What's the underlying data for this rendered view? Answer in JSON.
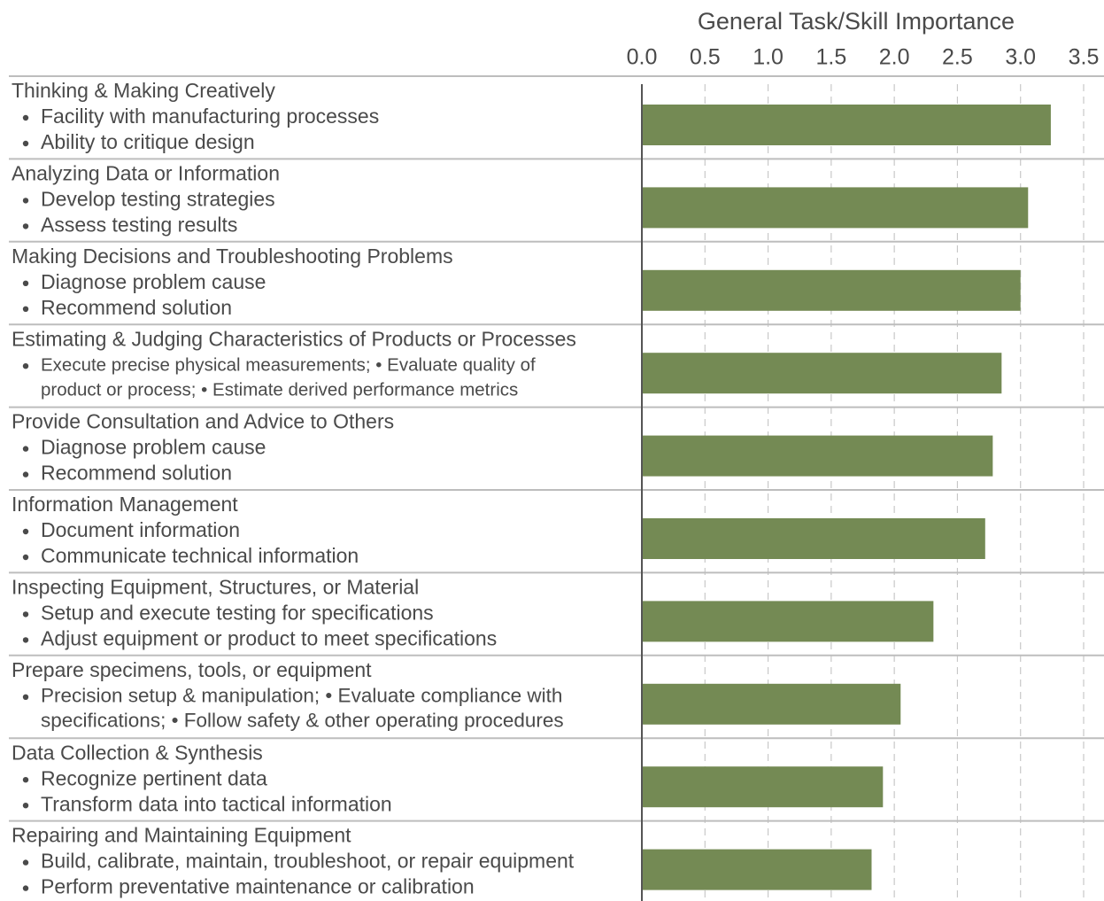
{
  "chart_data": {
    "type": "bar",
    "orientation": "horizontal",
    "xlabel": "General Task/Skill Importance",
    "categories": [
      "Thinking & Making Creatively",
      "Analyzing Data or Information",
      "Making Decisions and Troubleshooting Problems",
      "Estimating & Judging Characteristics of Products or Processes",
      "Provide Consultation and Advice to Others",
      "Information Management",
      "Inspecting Equipment, Structures, or Material",
      "Prepare specimens, tools, or equipment",
      "Data Collection & Synthesis",
      "Repairing and Maintaining Equipment"
    ],
    "details": [
      [
        "Facility with manufacturing processes",
        "Ability to critique design"
      ],
      [
        "Develop testing strategies",
        "Assess testing results"
      ],
      [
        "Diagnose problem cause",
        "Recommend solution"
      ],
      [
        "Execute precise physical measurements; • Evaluate quality of",
        "product or process; • Estimate derived performance metrics"
      ],
      [
        "Diagnose problem cause",
        "Recommend solution"
      ],
      [
        "Document information",
        "Communicate technical information"
      ],
      [
        "Setup and execute testing for specifications",
        "Adjust equipment or product to meet specifications"
      ],
      [
        "Precision setup & manipulation; • Evaluate compliance with",
        "specifications; • Follow safety & other operating procedures"
      ],
      [
        "Recognize pertinent data",
        "Transform data into tactical information"
      ],
      [
        "Build, calibrate, maintain, troubleshoot, or repair equipment",
        "Perform preventative maintenance or calibration"
      ]
    ],
    "detail_style": [
      "bullets",
      "bullets",
      "bullets",
      "wrapped",
      "bullets",
      "bullets",
      "bullets",
      "wrapped",
      "bullets",
      "bullets"
    ],
    "values": [
      3.24,
      3.06,
      3.0,
      2.85,
      2.78,
      2.72,
      2.31,
      2.05,
      1.91,
      1.82
    ],
    "color": "#748a54",
    "xlim": [
      0,
      3.5
    ],
    "xticks": [
      {
        "value": 0,
        "label": "0.0"
      },
      0.5,
      {
        "value": 1,
        "label": "1.0"
      },
      1.5,
      {
        "value": 2,
        "label": "2.0"
      },
      2.5,
      {
        "value": 3,
        "label": "3.0"
      },
      3.5
    ],
    "grid": true
  }
}
